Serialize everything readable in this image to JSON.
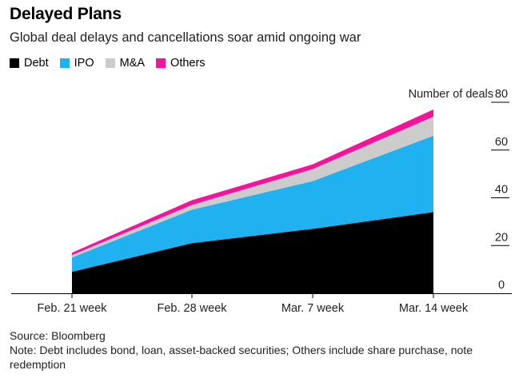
{
  "header": {
    "title": "Delayed Plans",
    "subtitle": "Global deal delays and cancellations soar amid ongoing war"
  },
  "footer": {
    "source": "Source: Bloomberg",
    "note": "Note: Debt includes bond, loan, asset-backed securities; Others include share purchase, note redemption"
  },
  "colors": {
    "Debt": "#000000",
    "IPO": "#1fb1f0",
    "M&A": "#cccccc",
    "Others": "#f4149b"
  },
  "chart_data": {
    "type": "area",
    "stacked": true,
    "title": "Delayed Plans",
    "subtitle": "Global deal delays and cancellations soar amid ongoing war",
    "ylabel": "Number of deals",
    "categories": [
      "Feb. 21 week",
      "Feb. 28 week",
      "Mar. 7 week",
      "Mar. 14 week"
    ],
    "ylim": [
      0,
      80
    ],
    "yticks": [
      0,
      20,
      40,
      60,
      80
    ],
    "series": [
      {
        "name": "Debt",
        "values": [
          9,
          21,
          27,
          34
        ]
      },
      {
        "name": "IPO",
        "values": [
          6,
          14,
          20,
          32
        ]
      },
      {
        "name": "M&A",
        "values": [
          1,
          2,
          5,
          8
        ]
      },
      {
        "name": "Others",
        "values": [
          1,
          2,
          2,
          3
        ]
      }
    ],
    "legend_position": "top-left",
    "grid": false
  }
}
